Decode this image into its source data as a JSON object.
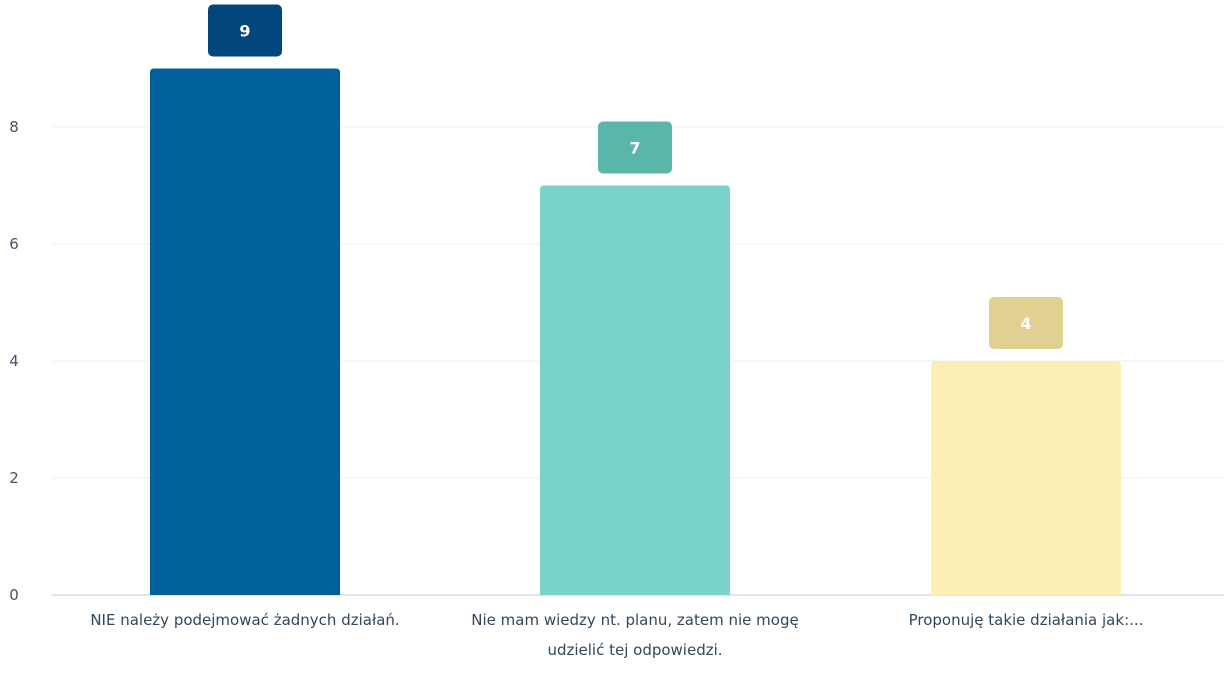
{
  "chart_data": {
    "type": "bar",
    "categories": [
      "NIE należy podejmować żadnych działań.",
      "Nie mam wiedzy nt. planu, zatem nie mogę udzielić tej odpowiedzi.",
      "Proponuję takie działania jak:..."
    ],
    "values": [
      9,
      7,
      4
    ],
    "bar_colors": [
      "#00609b",
      "#7ad3ca",
      "#fdeeb4"
    ],
    "label_colors": [
      "#02467b",
      "#5bb6aa",
      "#e0d092"
    ],
    "ylim": [
      0,
      9.5
    ],
    "yticks": [
      0,
      2,
      4,
      6,
      8
    ],
    "grid": true,
    "data_labels": true,
    "title": "",
    "xlabel": "",
    "ylabel": ""
  }
}
